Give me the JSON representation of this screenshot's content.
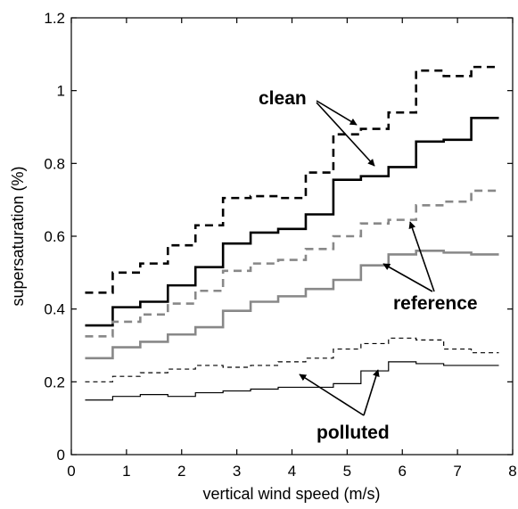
{
  "chart_data": {
    "type": "line",
    "step": true,
    "xlabel": "vertical wind speed (m/s)",
    "ylabel": "supersaturation (%)",
    "xlim": [
      0,
      8
    ],
    "ylim": [
      0,
      1.2
    ],
    "xticks": [
      "0",
      "1",
      "2",
      "3",
      "4",
      "5",
      "6",
      "7",
      "8"
    ],
    "yticks": [
      "0",
      "0.2",
      "0.4",
      "0.6",
      "0.8",
      "1",
      "1.2"
    ],
    "grid": false,
    "legend": "none",
    "bin_edges": [
      0.25,
      0.75,
      1.25,
      1.75,
      2.25,
      2.75,
      3.25,
      3.75,
      4.25,
      4.75,
      5.25,
      5.75,
      6.25,
      6.75,
      7.25,
      7.75
    ],
    "series": [
      {
        "group": "clean",
        "style": "dashed",
        "color": "#000000",
        "width": 2.6,
        "values": [
          0.445,
          0.5,
          0.525,
          0.575,
          0.63,
          0.705,
          0.71,
          0.705,
          0.775,
          0.88,
          0.895,
          0.94,
          1.055,
          1.04,
          1.065
        ]
      },
      {
        "group": "clean",
        "style": "solid",
        "color": "#000000",
        "width": 2.6,
        "values": [
          0.355,
          0.405,
          0.42,
          0.465,
          0.515,
          0.58,
          0.61,
          0.62,
          0.66,
          0.755,
          0.765,
          0.79,
          0.86,
          0.865,
          0.925
        ]
      },
      {
        "group": "reference",
        "style": "dashed",
        "color": "#888888",
        "width": 2.6,
        "values": [
          0.325,
          0.365,
          0.385,
          0.415,
          0.45,
          0.505,
          0.525,
          0.535,
          0.565,
          0.6,
          0.635,
          0.645,
          0.685,
          0.695,
          0.725
        ]
      },
      {
        "group": "reference",
        "style": "solid",
        "color": "#888888",
        "width": 2.6,
        "values": [
          0.265,
          0.295,
          0.31,
          0.33,
          0.35,
          0.395,
          0.42,
          0.435,
          0.455,
          0.48,
          0.52,
          0.55,
          0.56,
          0.555,
          0.55
        ]
      },
      {
        "group": "polluted",
        "style": "dashed",
        "color": "#000000",
        "width": 1.2,
        "values": [
          0.2,
          0.215,
          0.225,
          0.235,
          0.245,
          0.24,
          0.245,
          0.255,
          0.265,
          0.29,
          0.305,
          0.32,
          0.315,
          0.29,
          0.28
        ]
      },
      {
        "group": "polluted",
        "style": "solid",
        "color": "#000000",
        "width": 1.2,
        "values": [
          0.15,
          0.16,
          0.165,
          0.16,
          0.17,
          0.175,
          0.18,
          0.185,
          0.185,
          0.195,
          0.23,
          0.255,
          0.25,
          0.245,
          0.245
        ]
      }
    ],
    "annotations": [
      {
        "text": "clean",
        "points_to": "clean"
      },
      {
        "text": "reference",
        "points_to": "reference"
      },
      {
        "text": "polluted",
        "points_to": "polluted"
      }
    ]
  }
}
